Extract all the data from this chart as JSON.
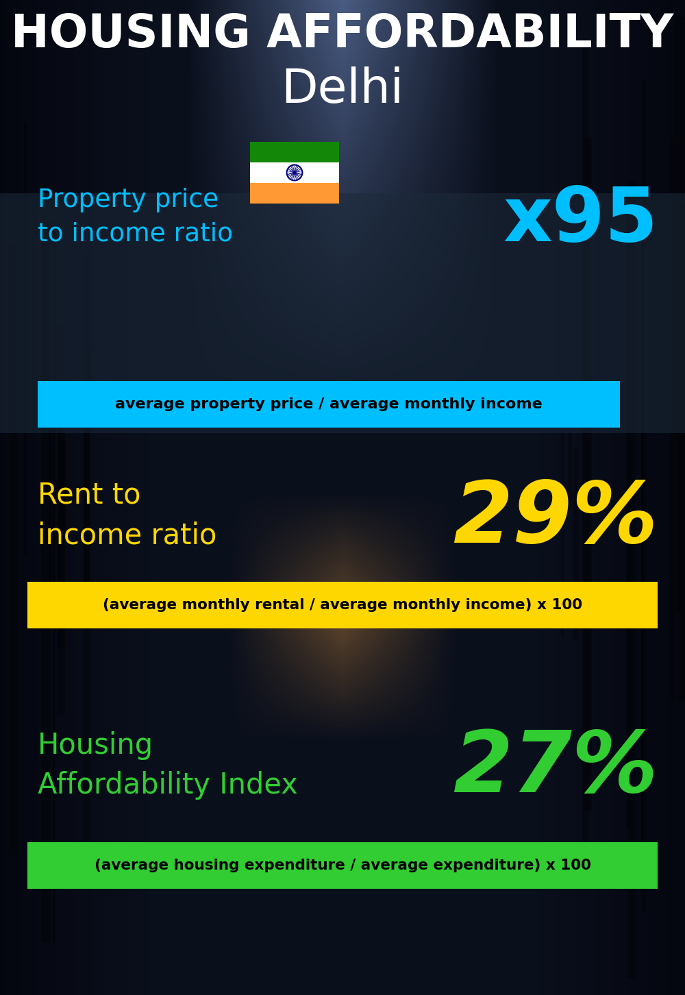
{
  "title_line1": "HOUSING AFFORDABILITY",
  "title_line2": "Delhi",
  "section1_label": "Property price\nto income ratio",
  "section1_value": "x95",
  "section1_label_color": "#00BFFF",
  "section1_value_color": "#00BFFF",
  "section1_formula": "average property price / average monthly income",
  "section1_formula_bg": "#00BFFF",
  "section2_label": "Rent to\nincome ratio",
  "section2_value": "29%",
  "section2_label_color": "#FFD700",
  "section2_value_color": "#FFD700",
  "section2_formula": "(average monthly rental / average monthly income) x 100",
  "section2_formula_bg": "#FFD700",
  "section3_label": "Housing\nAffordability Index",
  "section3_value": "27%",
  "section3_label_color": "#32CD32",
  "section3_value_color": "#32CD32",
  "section3_formula": "(average housing expenditure / average expenditure) x 100",
  "section3_formula_bg": "#32CD32",
  "bg_color": "#0a0e1a",
  "title_color": "#FFFFFF",
  "formula_text_color": "#000000"
}
